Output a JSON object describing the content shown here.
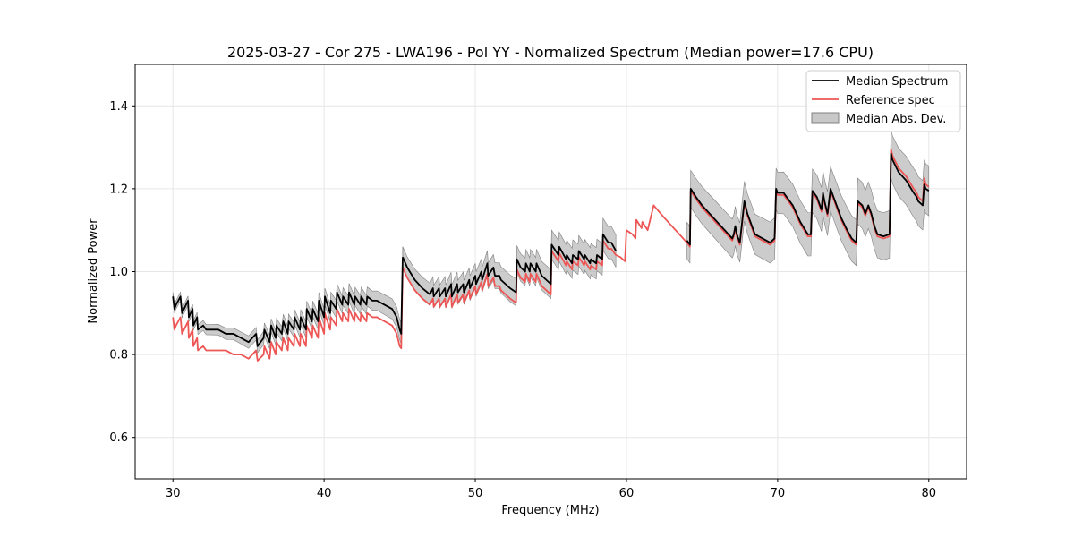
{
  "chart_data": {
    "type": "line",
    "title": "2025-03-27 - Cor 275 - LWA196 - Pol YY - Normalized Spectrum (Median power=17.6 CPU)",
    "xlabel": "Frequency (MHz)",
    "ylabel": "Normalized Power",
    "xlim": [
      27.5,
      82.5
    ],
    "ylim": [
      0.5,
      1.5
    ],
    "xticks": [
      30,
      40,
      50,
      60,
      70,
      80
    ],
    "yticks": [
      0.6,
      0.8,
      1.0,
      1.2,
      1.4
    ],
    "xtick_labels": [
      "30",
      "40",
      "50",
      "60",
      "70",
      "80"
    ],
    "ytick_labels": [
      "0.6",
      "0.8",
      "1.0",
      "1.2",
      "1.4"
    ],
    "grid": true,
    "legend_position": "top-right",
    "legend": [
      "Median Spectrum",
      "Reference spec",
      "Median Abs. Dev."
    ],
    "colors": {
      "median": "#000000",
      "reference": "#ee5555",
      "mad": "#b0b0b0",
      "mad_edge": "#808080"
    },
    "series": [
      {
        "name": "Median Spectrum",
        "segments": [
          {
            "x": [
              30.0,
              30.1,
              30.2,
              30.5,
              30.6,
              31.0,
              31.05,
              31.3,
              31.35,
              31.6,
              31.65,
              32.0,
              32.2,
              32.5,
              33.0,
              33.5,
              34.0,
              34.5,
              35.0,
              35.5,
              35.6,
              36.0,
              36.05,
              36.4,
              36.5,
              36.8,
              36.85,
              37.2,
              37.3,
              37.6,
              37.65,
              38.0,
              38.05,
              38.4,
              38.45,
              38.8,
              38.85,
              39.2,
              39.25,
              39.6,
              39.65,
              40.0,
              40.05,
              40.4,
              40.45,
              40.8,
              40.85,
              41.2,
              41.25,
              41.6,
              41.65,
              42.0,
              42.05,
              42.4,
              42.45,
              42.8,
              42.85,
              43.2,
              43.5,
              44.0,
              44.5,
              44.8,
              45.0,
              45.1,
              45.2
            ],
            "y": [
              0.94,
              0.91,
              0.92,
              0.94,
              0.9,
              0.93,
              0.89,
              0.91,
              0.87,
              0.89,
              0.86,
              0.87,
              0.86,
              0.86,
              0.86,
              0.85,
              0.85,
              0.84,
              0.83,
              0.85,
              0.82,
              0.84,
              0.86,
              0.83,
              0.87,
              0.84,
              0.87,
              0.85,
              0.88,
              0.85,
              0.88,
              0.86,
              0.89,
              0.86,
              0.89,
              0.86,
              0.91,
              0.88,
              0.91,
              0.88,
              0.93,
              0.89,
              0.94,
              0.9,
              0.93,
              0.91,
              0.95,
              0.92,
              0.94,
              0.92,
              0.95,
              0.92,
              0.94,
              0.92,
              0.94,
              0.92,
              0.94,
              0.93,
              0.93,
              0.92,
              0.91,
              0.89,
              0.86,
              0.85,
              1.035
            ]
          },
          {
            "x": [
              45.2,
              45.5,
              46.0,
              46.5,
              47.0,
              47.2,
              47.25,
              47.6,
              47.65,
              48.0,
              48.05,
              48.4,
              48.45,
              48.8,
              48.85,
              49.2,
              49.25,
              49.6,
              49.65,
              50.0,
              50.05,
              50.4,
              50.45,
              50.8,
              50.85,
              51.2,
              51.3,
              51.6,
              51.7,
              52.0,
              52.3,
              52.7,
              52.75,
              53.0,
              53.3,
              53.35,
              53.6,
              53.65,
              54.0,
              54.05,
              54.4,
              55.0,
              55.05,
              55.5,
              55.55,
              56.0,
              56.05,
              56.4,
              56.45,
              56.8,
              56.85,
              57.2,
              57.25,
              57.6,
              57.65,
              58.0,
              58.05,
              58.4,
              58.45,
              58.8,
              59.0,
              59.3
            ],
            "y": [
              1.035,
              1.01,
              0.98,
              0.96,
              0.945,
              0.96,
              0.94,
              0.96,
              0.94,
              0.96,
              0.94,
              0.97,
              0.94,
              0.97,
              0.95,
              0.97,
              0.95,
              0.98,
              0.96,
              0.99,
              0.97,
              1.0,
              0.98,
              1.02,
              0.99,
              1.01,
              0.99,
              0.99,
              0.98,
              0.97,
              0.96,
              0.95,
              1.03,
              1.01,
              1.0,
              1.02,
              1.0,
              1.02,
              1.0,
              1.02,
              0.99,
              0.97,
              1.065,
              1.04,
              1.06,
              1.03,
              1.04,
              1.02,
              1.04,
              1.03,
              1.05,
              1.03,
              1.04,
              1.02,
              1.03,
              1.02,
              1.04,
              1.03,
              1.09,
              1.07,
              1.07,
              1.05
            ]
          },
          {
            "x": [
              64.0,
              64.2,
              64.25,
              64.6,
              65.0,
              65.5,
              66.0,
              66.5,
              67.0,
              67.1,
              67.2,
              67.3,
              67.5,
              67.8,
              68.0,
              68.2,
              68.3,
              68.5,
              69.0,
              69.5,
              69.8,
              69.9,
              70.0,
              70.4,
              71.0,
              71.5,
              72.0,
              72.2,
              72.3,
              72.6,
              72.9,
              73.0,
              73.1,
              73.3,
              73.5,
              73.8,
              74.2,
              74.6,
              74.9,
              75.2,
              75.3,
              75.6,
              75.8,
              76.0,
              76.2,
              76.4,
              76.6,
              77.0,
              77.4,
              77.5,
              77.6,
              78.0,
              78.5,
              79.0,
              79.2,
              79.3,
              79.6,
              79.7,
              79.8,
              80.0
            ],
            "y": [
              1.075,
              1.065,
              1.2,
              1.18,
              1.16,
              1.14,
              1.12,
              1.1,
              1.08,
              1.09,
              1.11,
              1.09,
              1.07,
              1.17,
              1.14,
              1.12,
              1.11,
              1.09,
              1.08,
              1.07,
              1.08,
              1.2,
              1.19,
              1.19,
              1.16,
              1.12,
              1.09,
              1.09,
              1.195,
              1.18,
              1.15,
              1.19,
              1.17,
              1.14,
              1.2,
              1.17,
              1.13,
              1.1,
              1.08,
              1.07,
              1.17,
              1.16,
              1.14,
              1.16,
              1.14,
              1.11,
              1.09,
              1.085,
              1.09,
              1.285,
              1.27,
              1.24,
              1.22,
              1.19,
              1.18,
              1.17,
              1.16,
              1.21,
              1.2,
              1.195
            ]
          }
        ]
      },
      {
        "name": "Reference spec",
        "segments": [
          {
            "x": [
              30.0,
              30.1,
              30.2,
              30.5,
              30.6,
              31.0,
              31.05,
              31.3,
              31.35,
              31.6,
              31.65,
              32.0,
              32.2,
              32.5,
              33.0,
              33.5,
              34.0,
              34.5,
              35.0,
              35.5,
              35.6,
              36.0,
              36.05,
              36.4,
              36.5,
              36.8,
              36.85,
              37.2,
              37.3,
              37.6,
              37.65,
              38.0,
              38.05,
              38.4,
              38.45,
              38.8,
              38.85,
              39.2,
              39.25,
              39.6,
              39.65,
              40.0,
              40.05,
              40.4,
              40.45,
              40.8,
              40.85,
              41.2,
              41.25,
              41.6,
              41.65,
              42.0,
              42.05,
              42.4,
              42.45,
              42.8,
              42.85,
              43.2,
              43.5,
              44.0,
              44.5,
              44.8,
              45.0,
              45.1,
              45.2
            ],
            "y": [
              0.89,
              0.86,
              0.87,
              0.89,
              0.85,
              0.88,
              0.84,
              0.86,
              0.82,
              0.84,
              0.81,
              0.82,
              0.81,
              0.81,
              0.81,
              0.81,
              0.8,
              0.8,
              0.79,
              0.81,
              0.785,
              0.8,
              0.82,
              0.79,
              0.83,
              0.8,
              0.83,
              0.81,
              0.84,
              0.81,
              0.84,
              0.82,
              0.85,
              0.82,
              0.85,
              0.82,
              0.87,
              0.84,
              0.87,
              0.84,
              0.89,
              0.85,
              0.9,
              0.86,
              0.89,
              0.87,
              0.91,
              0.88,
              0.9,
              0.88,
              0.91,
              0.88,
              0.9,
              0.88,
              0.9,
              0.88,
              0.9,
              0.89,
              0.89,
              0.88,
              0.87,
              0.85,
              0.82,
              0.815,
              1.01
            ]
          },
          {
            "x": [
              45.2,
              45.5,
              46.0,
              46.5,
              47.0,
              47.2,
              47.25,
              47.6,
              47.65,
              48.0,
              48.05,
              48.4,
              48.45,
              48.8,
              48.85,
              49.2,
              49.25,
              49.6,
              49.65,
              50.0,
              50.05,
              50.4,
              50.45,
              50.8,
              50.85,
              51.2,
              51.3,
              51.6,
              51.7,
              52.0,
              52.3,
              52.7,
              52.75,
              53.0,
              53.3,
              53.35,
              53.6,
              53.65,
              54.0,
              54.05,
              54.4,
              55.0,
              55.05,
              55.5,
              55.55,
              56.0,
              56.05,
              56.4,
              56.45,
              56.8,
              56.85,
              57.2,
              57.25,
              57.6,
              57.65,
              58.0,
              58.05,
              58.4,
              58.45,
              58.8,
              59.0,
              59.3,
              59.6,
              59.9,
              60.0,
              60.4,
              60.6,
              60.65,
              61.0,
              61.05,
              61.4,
              61.8,
              62.5,
              63.0,
              63.5,
              64.0,
              64.2,
              64.25,
              64.6,
              65.0,
              65.5,
              66.0,
              66.5,
              67.0,
              67.1,
              67.2,
              67.3,
              67.5,
              67.8,
              68.0,
              68.2,
              68.3,
              68.5,
              69.0,
              69.5,
              69.8,
              69.9,
              70.0,
              70.4,
              71.0,
              71.5,
              72.0,
              72.2,
              72.3,
              72.6,
              72.9,
              73.0,
              73.1,
              73.3,
              73.5,
              73.8,
              74.2,
              74.6,
              74.9,
              75.2,
              75.3,
              75.6,
              75.8,
              76.0,
              76.2,
              76.4,
              76.6,
              77.0,
              77.4,
              77.5,
              77.6,
              78.0,
              78.5,
              79.0,
              79.2,
              79.3,
              79.6,
              79.7,
              79.8,
              80.0
            ],
            "y": [
              1.01,
              0.985,
              0.955,
              0.935,
              0.92,
              0.935,
              0.915,
              0.935,
              0.915,
              0.935,
              0.915,
              0.945,
              0.915,
              0.945,
              0.925,
              0.945,
              0.925,
              0.955,
              0.935,
              0.965,
              0.945,
              0.975,
              0.955,
              0.995,
              0.965,
              0.985,
              0.965,
              0.965,
              0.955,
              0.945,
              0.935,
              0.925,
              1.005,
              0.985,
              0.975,
              0.995,
              0.975,
              0.995,
              0.975,
              0.995,
              0.965,
              0.945,
              1.05,
              1.025,
              1.045,
              1.015,
              1.025,
              1.005,
              1.025,
              1.015,
              1.035,
              1.015,
              1.025,
              1.005,
              1.015,
              1.005,
              1.025,
              1.015,
              1.075,
              1.055,
              1.055,
              1.04,
              1.035,
              1.025,
              1.1,
              1.09,
              1.08,
              1.125,
              1.105,
              1.12,
              1.1,
              1.16,
              1.13,
              1.11,
              1.09,
              1.07,
              1.06,
              1.195,
              1.175,
              1.155,
              1.135,
              1.115,
              1.095,
              1.075,
              1.085,
              1.105,
              1.085,
              1.065,
              1.165,
              1.135,
              1.115,
              1.105,
              1.085,
              1.075,
              1.065,
              1.075,
              1.195,
              1.185,
              1.185,
              1.155,
              1.115,
              1.085,
              1.085,
              1.19,
              1.175,
              1.145,
              1.185,
              1.165,
              1.135,
              1.195,
              1.165,
              1.125,
              1.095,
              1.075,
              1.065,
              1.165,
              1.155,
              1.135,
              1.155,
              1.135,
              1.105,
              1.085,
              1.08,
              1.085,
              1.295,
              1.28,
              1.25,
              1.23,
              1.2,
              1.19,
              1.18,
              1.17,
              1.225,
              1.21,
              1.205
            ]
          }
        ]
      },
      {
        "name": "Median Abs. Dev.",
        "band_halfwidth": [
          0.01,
          0.06
        ],
        "band_profile": "grows with frequency"
      }
    ]
  }
}
